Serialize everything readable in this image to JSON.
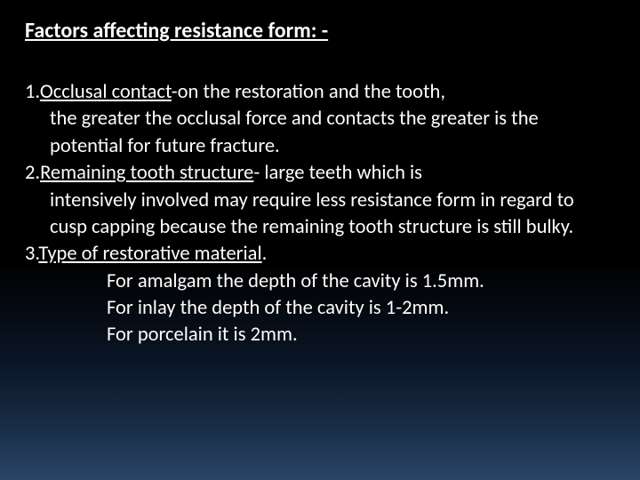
{
  "title": "Factors affecting resistance form: -",
  "items": [
    {
      "num": "1.",
      "head": "Occlusal contact",
      "tail": "-on the restoration and the tooth,",
      "body": "the greater the occlusal force and contacts the greater is the potential for future fracture."
    },
    {
      "num": "2.",
      "head": "Remaining tooth structure",
      "tail": "- large teeth which is",
      "body": "intensively involved may require less resistance form in regard to cusp capping because the remaining tooth structure is still bulky."
    },
    {
      "num": "3.",
      "head": "Type of restorative material",
      "tail": ".",
      "body": "",
      "subs": [
        "For amalgam the depth of the cavity is 1.5mm.",
        "For inlay the depth of the cavity is 1-2mm.",
        "For porcelain it is 2mm."
      ]
    }
  ],
  "colors": {
    "text": "#fdfdfd",
    "bg_top": "#000000",
    "bg_bottom": "#2a4568"
  },
  "typography": {
    "title_fontsize": 24,
    "body_fontsize": 22.5,
    "font_family": "Calibri"
  }
}
